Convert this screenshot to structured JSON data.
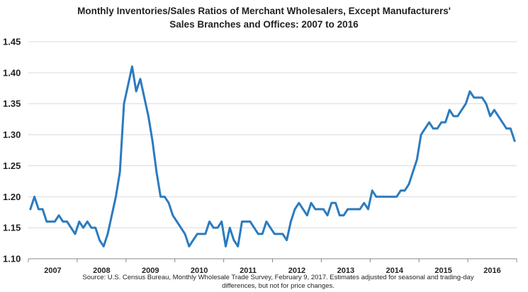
{
  "chart_data": {
    "type": "line",
    "title_line1": "Monthly Inventories/Sales Ratios of Merchant Wholesalers, Except Manufacturers'",
    "title_line2": "Sales Branches and Offices:  2007 to 2016",
    "xlabel": "",
    "ylabel": "",
    "ylim": [
      1.1,
      1.45
    ],
    "y_ticks": [
      "1.10",
      "1.15",
      "1.20",
      "1.25",
      "1.30",
      "1.35",
      "1.40",
      "1.45"
    ],
    "x_tick_labels": [
      "2007",
      "2008",
      "2009",
      "2010",
      "2011",
      "2012",
      "2013",
      "2014",
      "2015",
      "2016"
    ],
    "grid": "horizontal",
    "series_color": "#2b7bbf",
    "series": [
      {
        "values": [
          1.18,
          1.2,
          1.18,
          1.18,
          1.16,
          1.16,
          1.16,
          1.17,
          1.16,
          1.16,
          1.15,
          1.14,
          1.16,
          1.15,
          1.16,
          1.15,
          1.15,
          1.13,
          1.12,
          1.14,
          1.17,
          1.2,
          1.24,
          1.35,
          1.38,
          1.41,
          1.37,
          1.39,
          1.36,
          1.33,
          1.29,
          1.24,
          1.2,
          1.2,
          1.19,
          1.17,
          1.16,
          1.15,
          1.14,
          1.12,
          1.13,
          1.14,
          1.14,
          1.14,
          1.16,
          1.15,
          1.15,
          1.16,
          1.12,
          1.15,
          1.13,
          1.12,
          1.16,
          1.16,
          1.16,
          1.15,
          1.14,
          1.14,
          1.16,
          1.15,
          1.14,
          1.14,
          1.14,
          1.13,
          1.16,
          1.18,
          1.19,
          1.18,
          1.17,
          1.19,
          1.18,
          1.18,
          1.18,
          1.17,
          1.19,
          1.19,
          1.17,
          1.17,
          1.18,
          1.18,
          1.18,
          1.18,
          1.19,
          1.18,
          1.21,
          1.2,
          1.2,
          1.2,
          1.2,
          1.2,
          1.2,
          1.21,
          1.21,
          1.22,
          1.24,
          1.26,
          1.3,
          1.31,
          1.32,
          1.31,
          1.31,
          1.32,
          1.32,
          1.34,
          1.33,
          1.33,
          1.34,
          1.35,
          1.37,
          1.36,
          1.36,
          1.36,
          1.35,
          1.33,
          1.34,
          1.33,
          1.32,
          1.31,
          1.31,
          1.29
        ]
      }
    ]
  },
  "source_line1": "Source: U.S. Census Bureau, Monthly Wholesale Trade Survey, February 9, 2017. Estimates adjusted for seasonal and trading-day",
  "source_line2": "differences, but not for price changes."
}
